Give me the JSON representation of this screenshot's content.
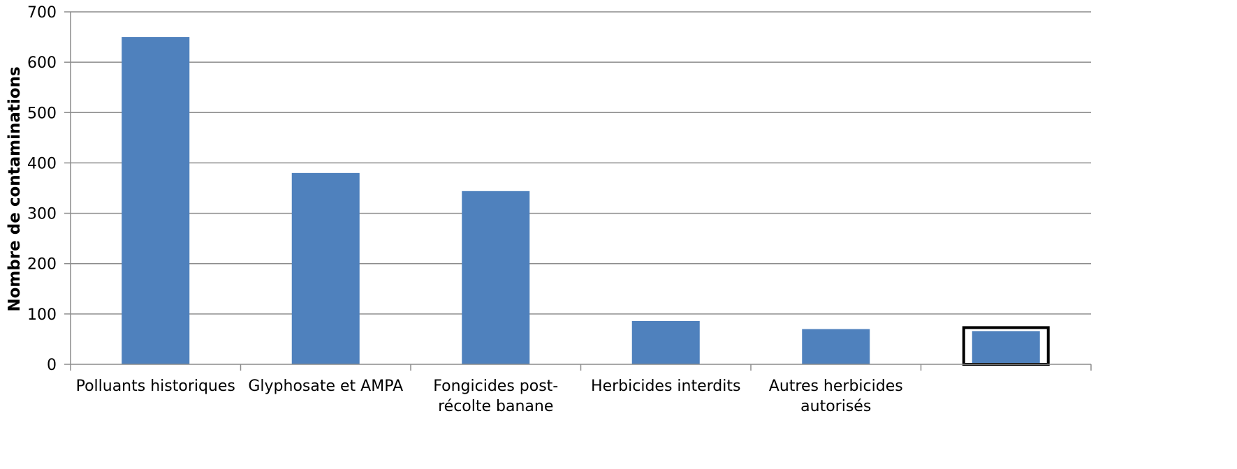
{
  "chart_data": {
    "type": "bar",
    "title": "",
    "xlabel": "",
    "ylabel": "Nombre de contaminations",
    "ylim": [
      0,
      700
    ],
    "yticks": [
      0,
      100,
      200,
      300,
      400,
      500,
      600,
      700
    ],
    "grid": true,
    "categories": [
      [
        "Polluants historiques"
      ],
      [
        "Glyphosate et AMPA"
      ],
      [
        "Fongicides post-",
        "récolte banane"
      ],
      [
        "Herbicides interdits"
      ],
      [
        "Autres herbicides",
        "autorisés"
      ],
      [
        ""
      ]
    ],
    "values": [
      650,
      380,
      344,
      86,
      70,
      66
    ],
    "highlighted_index": 5,
    "colors": {
      "bar": "#4f81bd",
      "grid": "#8c8c8c",
      "axis": "#8c8c8c",
      "highlight_box": "#000000"
    }
  }
}
